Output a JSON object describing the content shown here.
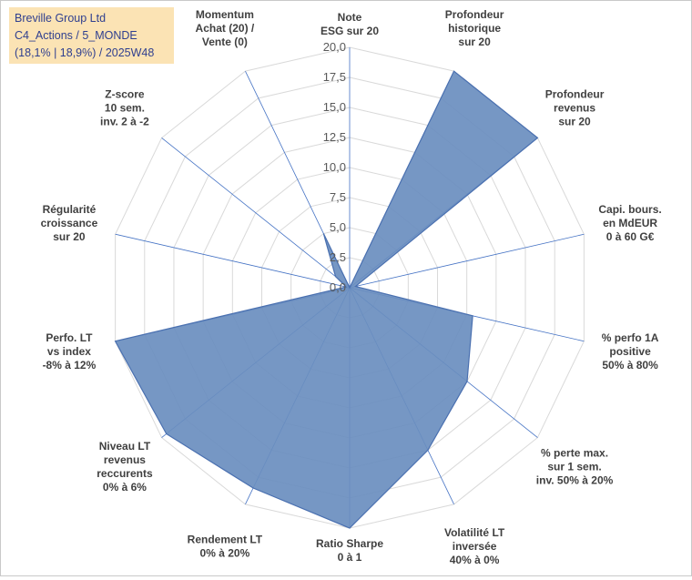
{
  "info": {
    "line1": "Breville Group Ltd",
    "line2": "C4_Actions / 5_MONDE",
    "line3": "(18,1% | 18,9%) / 2025W48"
  },
  "colors": {
    "fill": "#6a8ebf",
    "stroke": "#4a70b0",
    "grid": "#d9d9d9",
    "spoke": "#4472c4",
    "info_bg": "#fbe3b4",
    "info_text": "#2f3f8f"
  },
  "chart_data": {
    "type": "radar",
    "grid": true,
    "rlim": [
      0,
      20
    ],
    "ticks": [
      "0,0",
      "2,5",
      "5,0",
      "7,5",
      "10,0",
      "12,5",
      "15,0",
      "17,5",
      "20,0"
    ],
    "categories": [
      [
        "Note",
        "ESG sur 20"
      ],
      [
        "Profondeur",
        "historique",
        "sur 20"
      ],
      [
        "Profondeur",
        "revenus",
        "sur 20"
      ],
      [
        "Capi. bours.",
        "en MdEUR",
        "0 à 60 G€"
      ],
      [
        "% perfo 1A",
        "positive",
        "50% à 80%"
      ],
      [
        "% perte max.",
        "sur 1 sem.",
        "inv. 50% à 20%"
      ],
      [
        "Volatilité LT",
        "inversée",
        "40% à 0%"
      ],
      [
        "Ratio Sharpe",
        "0 à 1"
      ],
      [
        "Rendement LT",
        "0% à 20%"
      ],
      [
        "Niveau LT",
        "revenus",
        "reccurents",
        "0% à 6%"
      ],
      [
        "Perfo. LT",
        "vs index",
        "-8% à 12%"
      ],
      [
        "Régularité",
        "croissance",
        "sur 20"
      ],
      [
        "Z-score",
        "10 sem.",
        "inv. 2 à -2"
      ],
      [
        "Momentum",
        "Achat (20) /",
        "Vente (0)"
      ]
    ],
    "series": [
      {
        "values": [
          0,
          20,
          20,
          0.5,
          10.5,
          12.5,
          15,
          20,
          18.5,
          19.5,
          20,
          0.3,
          1.5,
          5
        ]
      }
    ]
  }
}
